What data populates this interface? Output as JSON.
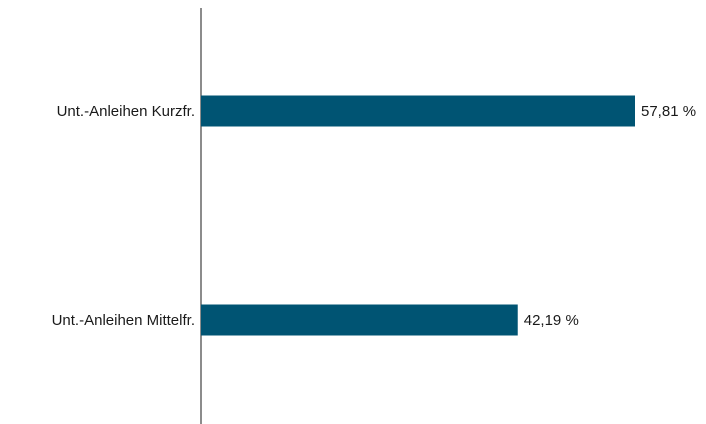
{
  "chart_data": {
    "type": "bar",
    "orientation": "horizontal",
    "categories": [
      "Unt.-Anleihen Kurzfr.",
      "Unt.-Anleihen Mittelfr."
    ],
    "values": [
      57.81,
      42.19
    ],
    "value_labels": [
      "57,81 %",
      "42,19 %"
    ],
    "unit": "%",
    "title": "",
    "xlabel": "",
    "ylabel": "",
    "xlim": [
      0,
      57.81
    ],
    "grid": false,
    "legend": "none",
    "bar_color": "#005473",
    "axis_color": "#1a1a1a"
  }
}
